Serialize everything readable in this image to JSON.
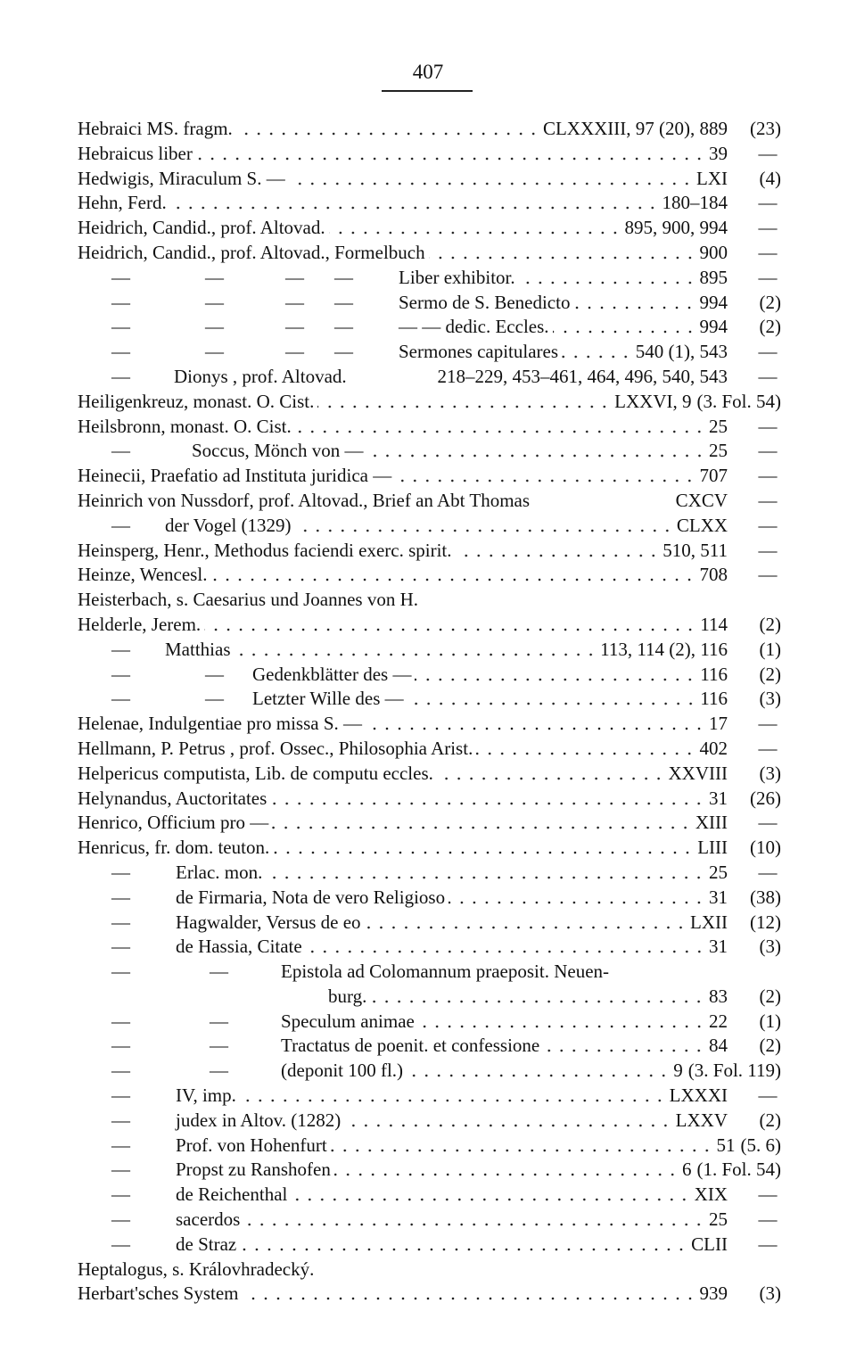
{
  "page_number": "407",
  "entries": [
    {
      "dashes": 0,
      "text": "Hebraici MS. fragm.",
      "page": "CLXXXIII, 97 (20), 889",
      "note": "(23)"
    },
    {
      "dashes": 0,
      "text": "Hebraicus liber",
      "page": "39",
      "note": "—"
    },
    {
      "dashes": 0,
      "text": "Hedwigis, Miraculum S. —",
      "page": "LXI",
      "note": "(4)"
    },
    {
      "dashes": 0,
      "text": "Hehn, Ferd.",
      "page": "180–184",
      "note": "—"
    },
    {
      "dashes": 0,
      "text": "Heidrich, Candid., prof. Altovad.",
      "page": "895, 900, 994",
      "note": "—"
    },
    {
      "dashes": 0,
      "text": "Heidrich, Candid., prof. Altovad., Formelbuch",
      "page": "900",
      "note": "—"
    },
    {
      "dashes": 4,
      "text": "Liber exhibitor.",
      "page": "895",
      "note": "—"
    },
    {
      "dashes": 4,
      "text": "Sermo de S. Benedicto",
      "page": "994",
      "note": "(2)"
    },
    {
      "dashes": 4,
      "text": "  — — dedic. Eccles.",
      "page": "994",
      "note": "(2)"
    },
    {
      "dashes": 4,
      "text": "Sermones capitulares",
      "page": "540 (1), 543",
      "note": "—"
    },
    {
      "dashes": 1,
      "text": "Dionys , prof. Altovad.",
      "page": "218–229, 453–461, 464, 496, 540, 543",
      "note": "—"
    },
    {
      "dashes": 0,
      "text": "Heiligenkreuz, monast. O. Cist.",
      "page": "LXXVI, 9",
      "note": "(3. Fol. 54)"
    },
    {
      "dashes": 0,
      "text": "Heilsbronn, monast. O. Cist.",
      "page": "25",
      "note": "—"
    },
    {
      "dashes": 1,
      "text": "Soccus, Mönch von —",
      "page": "25",
      "note": "—"
    },
    {
      "dashes": 0,
      "text": "Heinecii, Praefatio ad Instituta juridica —",
      "page": "707",
      "note": "—"
    },
    {
      "dashes": 0,
      "text": "Heinrich von Nussdorf, prof. Altovad., Brief an Abt Thomas",
      "page": "CXCV",
      "note": "—"
    },
    {
      "dashes": 1,
      "text": "der Vogel (1329)",
      "page": "CLXX",
      "note": "—"
    },
    {
      "dashes": 0,
      "text": "Heinsperg, Henr., Methodus faciendi exerc. spirit.",
      "page": "510, 511",
      "note": "—"
    },
    {
      "dashes": 0,
      "text": "Heinze, Wencesl.",
      "page": "708",
      "note": "—"
    },
    {
      "dashes": 0,
      "text": "Heisterbach, s. Caesarius und Joannes von H.",
      "page": "",
      "note": ""
    },
    {
      "dashes": 0,
      "text": "Helderle, Jerem.",
      "page": "114",
      "note": "(2)"
    },
    {
      "dashes": 1,
      "text": "Matthias",
      "page": "113, 114 (2), 116",
      "note": "(1)"
    },
    {
      "dashes": 2,
      "text": "Gedenkblätter des —",
      "page": "116",
      "note": "(2)"
    },
    {
      "dashes": 2,
      "text": "Letzter Wille des —",
      "page": "116",
      "note": "(3)"
    },
    {
      "dashes": 0,
      "text": "Helenae, Indulgentiae pro missa S. —",
      "page": "17",
      "note": "—"
    },
    {
      "dashes": 0,
      "text": "Hellmann, P. Petrus , prof. Ossec., Philosophia Arist.",
      "page": "402",
      "note": "—"
    },
    {
      "dashes": 0,
      "text": "Helpericus computista, Lib. de computu eccles.",
      "page": "XXVIII",
      "note": "(3)"
    },
    {
      "dashes": 0,
      "text": "Helynandus, Auctoritates",
      "page": "31",
      "note": "(26)"
    },
    {
      "dashes": 0,
      "text": "Henrico, Officium pro —",
      "page": "XIII",
      "note": "—"
    },
    {
      "dashes": 0,
      "text": "Henricus, fr. dom. teuton.",
      "page": "LIII",
      "note": "(10)"
    },
    {
      "dashes": 1,
      "text": "Erlac. mon.",
      "page": "25",
      "note": "—"
    },
    {
      "dashes": 1,
      "text": "de Firmaria, Nota de vero Religioso",
      "page": "31",
      "note": "(38)"
    },
    {
      "dashes": 1,
      "text": "Hagwalder, Versus de eo",
      "page": "LXII",
      "note": "(12)"
    },
    {
      "dashes": 1,
      "text": "de Hassia, Citate",
      "page": "31",
      "note": "(3)"
    },
    {
      "dashes": 2,
      "text": "Epistola ad Colomannum praeposit. Neuen-",
      "page": "",
      "note": ""
    },
    {
      "dashes": 0,
      "text": "burg.",
      "page": "83",
      "note": "(2)",
      "cont": true
    },
    {
      "dashes": 2,
      "text": "Speculum animae",
      "page": "22",
      "note": "(1)"
    },
    {
      "dashes": 2,
      "text": "Tractatus de poenit. et confessione",
      "page": "84",
      "note": "(2)"
    },
    {
      "dashes": 2,
      "text": "(deponit 100 fl.)",
      "page": "9",
      "note": "(3. Fol. 119)"
    },
    {
      "dashes": 1,
      "text": "IV, imp.",
      "page": "LXXXI",
      "note": "—"
    },
    {
      "dashes": 1,
      "text": "judex in Altov. (1282)",
      "page": "LXXV",
      "note": "(2)"
    },
    {
      "dashes": 1,
      "text": "Prof. von Hohenfurt",
      "page": "51",
      "note": "(5. 6)"
    },
    {
      "dashes": 1,
      "text": "Propst zu Ranshofen",
      "page": "6",
      "note": "(1. Fol. 54)"
    },
    {
      "dashes": 1,
      "text": "de Reichenthal",
      "page": "XIX",
      "note": "—"
    },
    {
      "dashes": 1,
      "text": "sacerdos",
      "page": "25",
      "note": "—"
    },
    {
      "dashes": 1,
      "text": "de Straz",
      "page": "CLII",
      "note": "—"
    },
    {
      "dashes": 0,
      "text": "Heptalogus, s. Královhradecký.",
      "page": "",
      "note": ""
    },
    {
      "dashes": 0,
      "text": "Herbart'sches System",
      "page": "939",
      "note": "(3)"
    }
  ]
}
